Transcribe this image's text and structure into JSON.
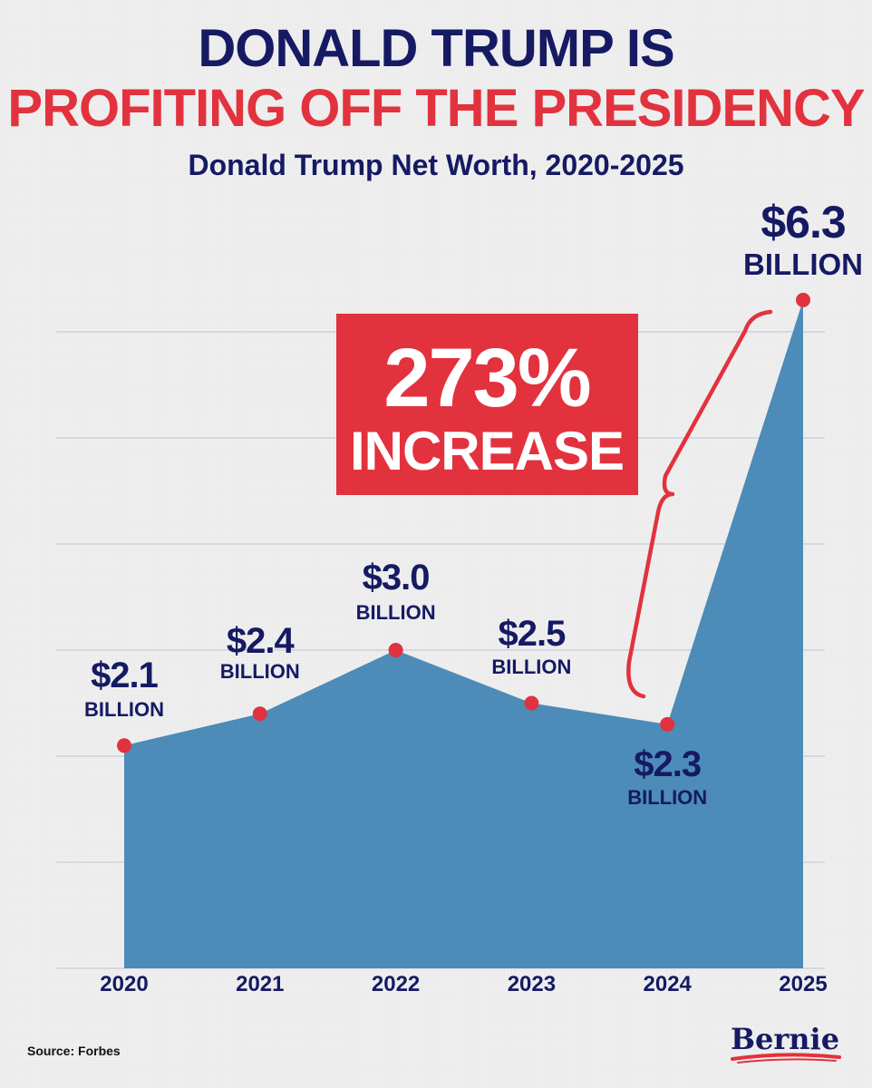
{
  "headline": {
    "line1": "DONALD TRUMP IS",
    "line2": "PROFITING OFF THE PRESIDENCY"
  },
  "colors": {
    "navy": "#151a63",
    "red": "#e2323e",
    "area": "#4d8bb8",
    "marker": "#e0323f",
    "grid": "#c9c9dd"
  },
  "callout": {
    "big": "273%",
    "small": "INCREASE"
  },
  "source": "Source: Forbes",
  "logo": "Bernie",
  "chart_data": {
    "type": "area",
    "title": "Donald Trump Net Worth, 2020-2025",
    "xlabel": "",
    "ylabel": "",
    "categories": [
      "2020",
      "2021",
      "2022",
      "2023",
      "2024",
      "2025"
    ],
    "values": [
      2.1,
      2.4,
      3.0,
      2.5,
      2.3,
      6.3
    ],
    "ylim": [
      0,
      6
    ],
    "grid": true,
    "value_labels": [
      {
        "amount": "$2.1",
        "unit": "BILLION"
      },
      {
        "amount": "$2.4",
        "unit": "BILLION"
      },
      {
        "amount": "$3.0",
        "unit": "BILLION"
      },
      {
        "amount": "$2.5",
        "unit": "BILLION"
      },
      {
        "amount": "$2.3",
        "unit": "BILLION"
      },
      {
        "amount": "$6.3",
        "unit": "BILLION"
      }
    ]
  }
}
